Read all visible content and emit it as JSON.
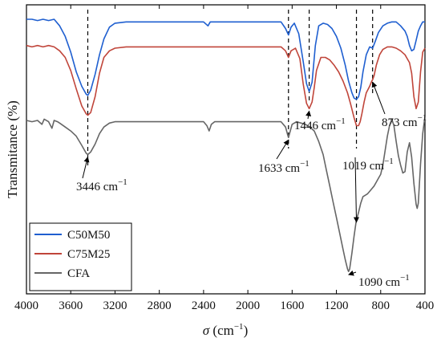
{
  "chart_data": {
    "type": "line",
    "title": "",
    "xlabel": "σ (cm⁻¹)",
    "ylabel": "Transmitance (%)",
    "xlim": [
      4000,
      400
    ],
    "x_reversed": true,
    "y_tick_labels": false,
    "grid": false,
    "legend_placement": "bottom-left",
    "x_ticks": [
      4000,
      3600,
      3200,
      2800,
      2400,
      2000,
      1600,
      1200,
      800,
      400
    ],
    "series": [
      {
        "name": "C50M50",
        "color": "#1f5fd0",
        "x": [
          4000,
          3950,
          3900,
          3850,
          3800,
          3750,
          3700,
          3650,
          3600,
          3550,
          3500,
          3460,
          3446,
          3420,
          3380,
          3340,
          3300,
          3250,
          3200,
          3100,
          3000,
          2900,
          2800,
          2600,
          2400,
          2360,
          2340,
          2300,
          2200,
          2000,
          1800,
          1700,
          1660,
          1633,
          1610,
          1580,
          1540,
          1500,
          1470,
          1446,
          1420,
          1390,
          1360,
          1320,
          1280,
          1240,
          1200,
          1160,
          1120,
          1090,
          1060,
          1040,
          1019,
          1000,
          980,
          960,
          930,
          900,
          873,
          850,
          820,
          780,
          740,
          700,
          660,
          620,
          580,
          560,
          540,
          520,
          500,
          480,
          460,
          440,
          420,
          400
        ],
        "y": [
          9.5,
          9.5,
          9.4,
          9.5,
          9.4,
          9.5,
          9.0,
          8.2,
          7.0,
          5.5,
          4.4,
          3.8,
          3.7,
          4.1,
          5.3,
          6.8,
          8.0,
          8.9,
          9.2,
          9.3,
          9.3,
          9.3,
          9.3,
          9.3,
          9.3,
          9.0,
          9.3,
          9.3,
          9.3,
          9.3,
          9.3,
          9.3,
          8.8,
          8.3,
          8.9,
          9.2,
          8.4,
          6.3,
          4.6,
          4.0,
          4.7,
          7.5,
          9.0,
          9.2,
          9.1,
          8.8,
          8.2,
          7.3,
          6.0,
          4.8,
          3.9,
          3.5,
          3.4,
          3.6,
          4.3,
          5.5,
          6.8,
          7.4,
          7.3,
          7.8,
          8.5,
          9.0,
          9.2,
          9.3,
          9.3,
          9.0,
          8.6,
          8.2,
          7.5,
          7.1,
          7.2,
          7.9,
          8.6,
          9.0,
          9.3,
          9.3
        ]
      },
      {
        "name": "C75M25",
        "color": "#c0453a",
        "x": [
          4000,
          3950,
          3900,
          3850,
          3800,
          3750,
          3700,
          3650,
          3600,
          3550,
          3500,
          3460,
          3446,
          3420,
          3380,
          3340,
          3300,
          3250,
          3200,
          3100,
          3000,
          2800,
          2600,
          2400,
          2200,
          2000,
          1800,
          1700,
          1660,
          1633,
          1610,
          1570,
          1530,
          1500,
          1470,
          1446,
          1420,
          1400,
          1380,
          1340,
          1300,
          1260,
          1220,
          1180,
          1140,
          1100,
          1070,
          1040,
          1019,
          1000,
          985,
          970,
          950,
          930,
          900,
          880,
          873,
          860,
          840,
          810,
          780,
          740,
          700,
          660,
          620,
          580,
          560,
          540,
          520,
          500,
          480,
          460,
          440,
          420,
          400
        ],
        "y": [
          7.5,
          7.4,
          7.5,
          7.4,
          7.5,
          7.4,
          7.1,
          6.6,
          5.6,
          4.2,
          2.9,
          2.3,
          2.2,
          2.4,
          3.6,
          5.4,
          6.6,
          7.1,
          7.3,
          7.4,
          7.4,
          7.4,
          7.4,
          7.4,
          7.4,
          7.4,
          7.4,
          7.4,
          7.1,
          6.6,
          7.1,
          7.3,
          6.5,
          4.6,
          3.1,
          2.7,
          3.2,
          4.3,
          5.6,
          6.6,
          6.6,
          6.4,
          6.0,
          5.5,
          4.8,
          3.9,
          3.0,
          2.0,
          1.4,
          1.4,
          1.7,
          2.3,
          3.2,
          3.9,
          4.4,
          4.8,
          4.9,
          5.2,
          6.0,
          6.8,
          7.2,
          7.4,
          7.4,
          7.3,
          7.1,
          6.8,
          6.5,
          6.2,
          5.4,
          3.6,
          2.7,
          3.2,
          5.5,
          7.0,
          7.3
        ]
      },
      {
        "name": "CFA",
        "color": "#666666",
        "x": [
          4000,
          3950,
          3900,
          3860,
          3840,
          3800,
          3770,
          3750,
          3720,
          3700,
          3650,
          3600,
          3550,
          3500,
          3460,
          3446,
          3420,
          3380,
          3340,
          3300,
          3250,
          3200,
          3100,
          3000,
          2800,
          2600,
          2400,
          2370,
          2350,
          2330,
          2300,
          2200,
          2000,
          1800,
          1700,
          1660,
          1640,
          1633,
          1620,
          1600,
          1560,
          1520,
          1480,
          1440,
          1400,
          1360,
          1320,
          1290,
          1260,
          1230,
          1200,
          1170,
          1140,
          1120,
          1100,
          1090,
          1080,
          1060,
          1040,
          1020,
          1000,
          980,
          960,
          940,
          920,
          900,
          880,
          860,
          840,
          820,
          800,
          780,
          760,
          740,
          720,
          700,
          680,
          660,
          640,
          620,
          600,
          580,
          560,
          540,
          520,
          500,
          480,
          470,
          460,
          440,
          420,
          400
        ],
        "y": [
          1.8,
          1.7,
          1.8,
          1.5,
          1.9,
          1.7,
          1.2,
          1.8,
          1.7,
          1.6,
          1.3,
          1.0,
          0.6,
          -0.1,
          -0.7,
          -0.8,
          -0.6,
          0.0,
          0.8,
          1.3,
          1.6,
          1.7,
          1.7,
          1.7,
          1.7,
          1.7,
          1.7,
          1.4,
          1.0,
          1.5,
          1.7,
          1.7,
          1.7,
          1.7,
          1.7,
          1.3,
          0.7,
          0.5,
          0.9,
          1.5,
          1.7,
          1.6,
          1.5,
          1.3,
          1.0,
          0.2,
          -0.8,
          -2.0,
          -3.2,
          -4.4,
          -5.6,
          -6.8,
          -8.0,
          -8.8,
          -9.5,
          -9.7,
          -9.5,
          -8.3,
          -7.0,
          -5.8,
          -5.2,
          -4.5,
          -4.0,
          -3.9,
          -3.8,
          -3.6,
          -3.4,
          -3.2,
          -2.9,
          -2.6,
          -2.3,
          -1.6,
          -0.5,
          0.6,
          1.4,
          1.9,
          1.4,
          0.2,
          -0.9,
          -1.6,
          -2.2,
          -2.1,
          -0.6,
          0.1,
          -1.0,
          -3.0,
          -4.6,
          -4.9,
          -4.5,
          -1.5,
          0.8,
          2.1
        ]
      }
    ],
    "annotations": [
      {
        "text": "3446 cm",
        "sup": "−1",
        "x": 3446
      },
      {
        "text": "1633 cm",
        "sup": "−1",
        "x": 1633
      },
      {
        "text": "1446 cm",
        "sup": "−1",
        "x": 1446
      },
      {
        "text": "1019 cm",
        "sup": "−1",
        "x": 1019
      },
      {
        "text": "873 cm",
        "sup": "−1",
        "x": 873
      },
      {
        "text": "1090 cm",
        "sup": "−1",
        "x": 1090
      }
    ],
    "legend": [
      "C50M50",
      "C75M25",
      "CFA"
    ]
  },
  "axes": {
    "xlabel_sigma": "σ",
    "xlabel_unit": " (cm",
    "xlabel_sup": "−1",
    "xlabel_close": ")",
    "ylabel": "Transmitance (%)"
  }
}
